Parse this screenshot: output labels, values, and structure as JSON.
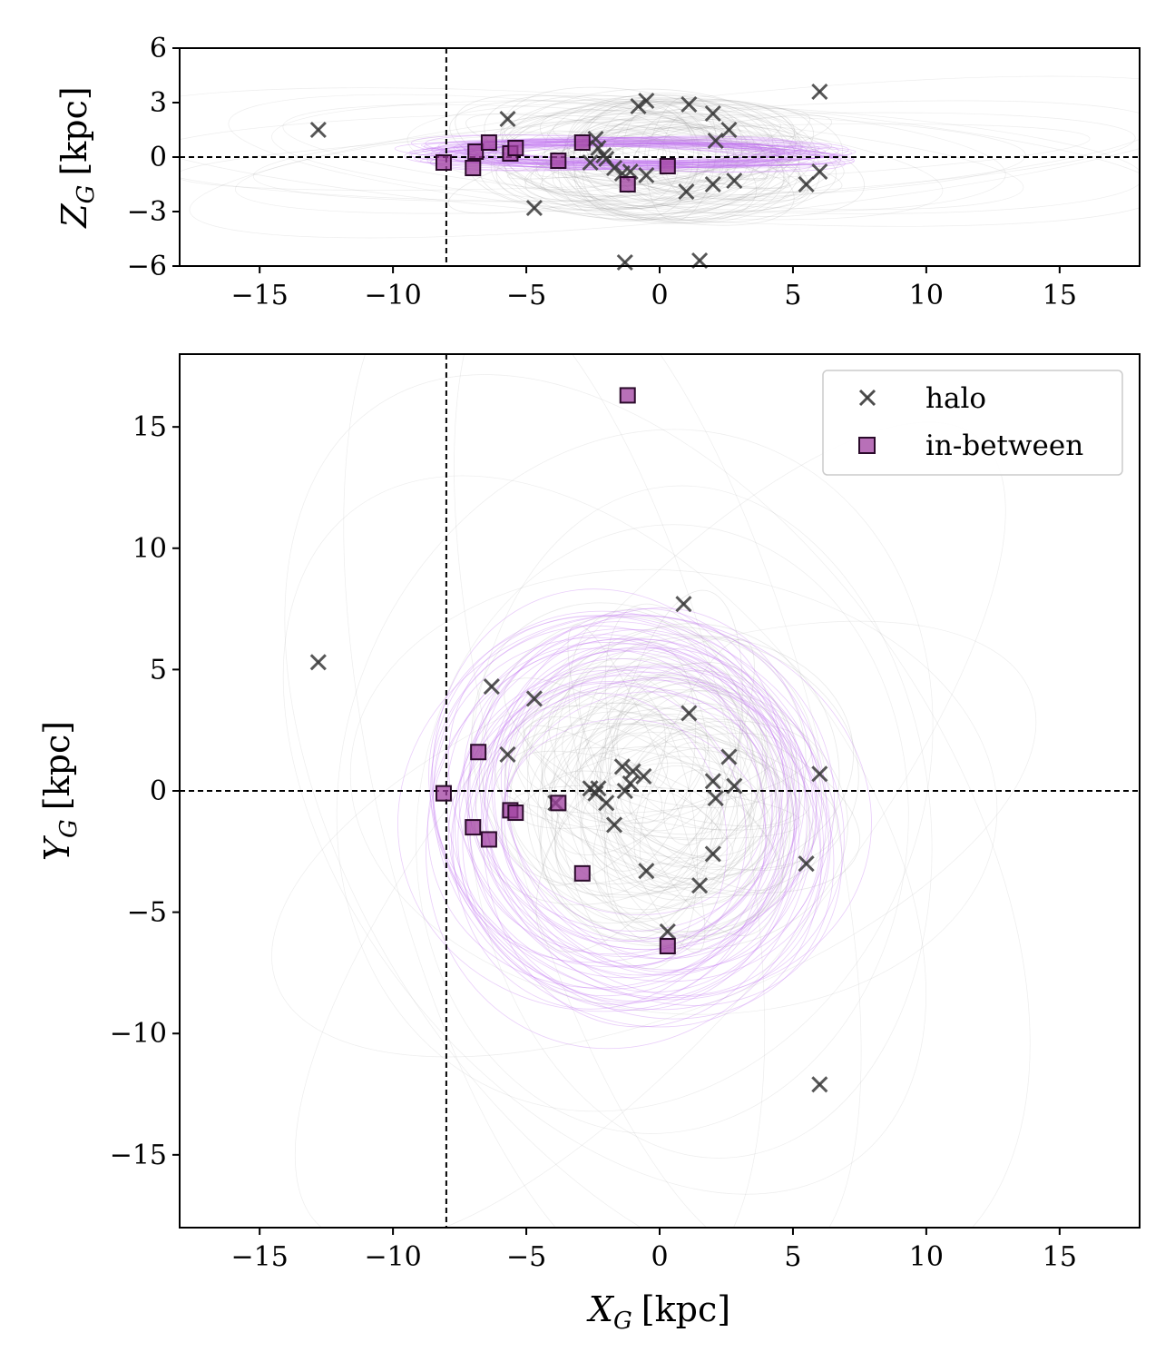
{
  "colors": {
    "halo": "#3a3a3a",
    "in_between": "#a040a0",
    "halo_orbit": "#9a9a9a",
    "in_between_orbit": "#c070f0"
  },
  "chart_data": [
    {
      "id": "xz",
      "type": "scatter",
      "title": "",
      "xlabel_main": "",
      "ylabel_main": "Z",
      "ylabel_sub": "G",
      "ylabel_unit": "[kpc]",
      "xlim": [
        -18,
        18
      ],
      "ylim": [
        -6,
        6
      ],
      "xticks": [
        -15,
        -10,
        -5,
        0,
        5,
        10,
        15
      ],
      "yticks": [
        -6,
        -3,
        0,
        3,
        6
      ],
      "xtick_labels": [
        "−15",
        "−10",
        "−5",
        "0",
        "5",
        "10",
        "15"
      ],
      "ytick_labels": [
        "−6",
        "−3",
        "0",
        "3",
        "6"
      ],
      "reference_lines": {
        "x": -8.0,
        "y": 0
      },
      "series": [
        {
          "name": "halo",
          "marker": "x",
          "points": [
            [
              -12.8,
              1.5
            ],
            [
              -5.7,
              2.1
            ],
            [
              -4.7,
              -2.8
            ],
            [
              -2.6,
              -0.3
            ],
            [
              -2.4,
              1.0
            ],
            [
              -2.3,
              0.5
            ],
            [
              -2.1,
              0.1
            ],
            [
              -2.0,
              -0.1
            ],
            [
              -1.7,
              -0.6
            ],
            [
              -1.4,
              -0.9
            ],
            [
              -1.3,
              -5.8
            ],
            [
              -1.1,
              -0.8
            ],
            [
              -0.8,
              2.8
            ],
            [
              -0.5,
              3.1
            ],
            [
              -0.5,
              -1.0
            ],
            [
              1.0,
              -1.9
            ],
            [
              1.1,
              2.9
            ],
            [
              1.5,
              -5.7
            ],
            [
              2.0,
              2.4
            ],
            [
              2.1,
              0.9
            ],
            [
              2.6,
              1.5
            ],
            [
              2.8,
              -1.3
            ],
            [
              5.5,
              -1.5
            ],
            [
              6.0,
              3.6
            ],
            [
              6.0,
              -0.8
            ],
            [
              2.0,
              -1.5
            ]
          ]
        },
        {
          "name": "in-between",
          "marker": "s",
          "points": [
            [
              -8.1,
              -0.3
            ],
            [
              -6.9,
              0.3
            ],
            [
              -7.0,
              -0.6
            ],
            [
              -6.4,
              0.8
            ],
            [
              -5.6,
              0.2
            ],
            [
              -5.4,
              0.5
            ],
            [
              -3.8,
              -0.2
            ],
            [
              -2.9,
              0.8
            ],
            [
              -1.2,
              -1.5
            ],
            [
              0.3,
              -0.5
            ]
          ]
        }
      ]
    },
    {
      "id": "xy",
      "type": "scatter",
      "title": "",
      "xlabel_main": "X",
      "xlabel_sub": "G",
      "xlabel_unit": "[kpc]",
      "ylabel_main": "Y",
      "ylabel_sub": "G",
      "ylabel_unit": "[kpc]",
      "xlim": [
        -18,
        18
      ],
      "ylim": [
        -18,
        18
      ],
      "xticks": [
        -15,
        -10,
        -5,
        0,
        5,
        10,
        15
      ],
      "yticks": [
        -15,
        -10,
        -5,
        0,
        5,
        10,
        15
      ],
      "xtick_labels": [
        "−15",
        "−10",
        "−5",
        "0",
        "5",
        "10",
        "15"
      ],
      "ytick_labels": [
        "−15",
        "−10",
        "−5",
        "0",
        "5",
        "10",
        "15"
      ],
      "reference_lines": {
        "x": -8.0,
        "y": 0
      },
      "legend": {
        "location": "upper right",
        "entries": [
          "halo",
          "in-between"
        ]
      },
      "series": [
        {
          "name": "halo",
          "marker": "x",
          "points": [
            [
              -12.8,
              5.3
            ],
            [
              -6.3,
              4.3
            ],
            [
              -4.7,
              3.8
            ],
            [
              -5.7,
              1.5
            ],
            [
              -3.9,
              -0.5
            ],
            [
              -2.6,
              0.1
            ],
            [
              -2.4,
              -0.1
            ],
            [
              -2.3,
              0.1
            ],
            [
              -2.0,
              -0.5
            ],
            [
              -1.7,
              -1.4
            ],
            [
              -1.4,
              1.0
            ],
            [
              -1.3,
              0.0
            ],
            [
              -1.1,
              0.3
            ],
            [
              -1.0,
              0.8
            ],
            [
              -0.6,
              0.6
            ],
            [
              -0.5,
              -3.3
            ],
            [
              0.3,
              -5.8
            ],
            [
              0.9,
              7.7
            ],
            [
              1.1,
              3.2
            ],
            [
              1.5,
              -3.9
            ],
            [
              2.0,
              -2.6
            ],
            [
              2.0,
              0.4
            ],
            [
              2.1,
              -0.3
            ],
            [
              2.6,
              1.4
            ],
            [
              2.8,
              0.2
            ],
            [
              5.5,
              -3.0
            ],
            [
              6.0,
              0.7
            ],
            [
              6.0,
              -12.1
            ]
          ]
        },
        {
          "name": "in-between",
          "marker": "s",
          "points": [
            [
              -8.1,
              -0.1
            ],
            [
              -6.8,
              1.6
            ],
            [
              -7.0,
              -1.5
            ],
            [
              -6.4,
              -2.0
            ],
            [
              -5.6,
              -0.8
            ],
            [
              -5.4,
              -0.9
            ],
            [
              -3.8,
              -0.5
            ],
            [
              -2.9,
              -3.4
            ],
            [
              -1.2,
              16.3
            ],
            [
              0.3,
              -6.4
            ]
          ]
        }
      ]
    }
  ]
}
